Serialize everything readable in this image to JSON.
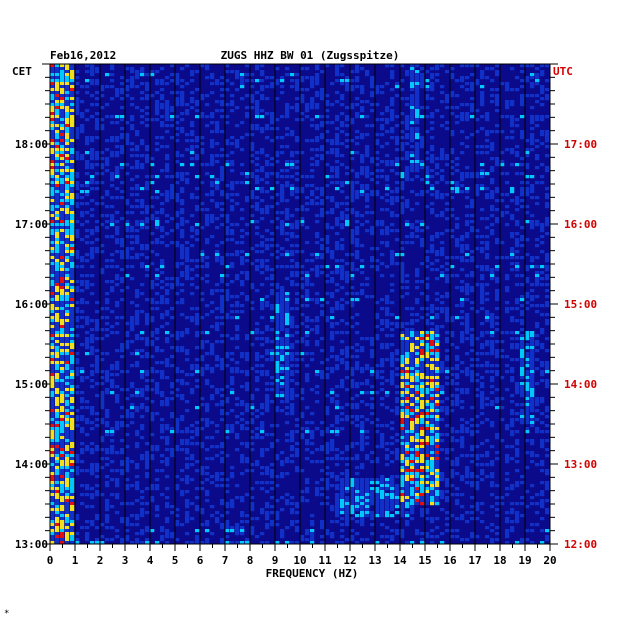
{
  "chart_data": {
    "type": "heatmap",
    "title": "ZUGS HHZ BW 01 (Zugsspitze)",
    "date": "Feb16,2012",
    "xlabel": "FREQUENCY (HZ)",
    "left_axis_label": "CET",
    "right_axis_label": "UTC",
    "x_ticks": [
      "0",
      "1",
      "2",
      "3",
      "4",
      "5",
      "6",
      "7",
      "8",
      "9",
      "10",
      "11",
      "12",
      "13",
      "14",
      "15",
      "16",
      "17",
      "18",
      "19",
      "20"
    ],
    "xlim": [
      0,
      20
    ],
    "cet_ticks": [
      "13:00",
      "14:00",
      "15:00",
      "16:00",
      "17:00",
      "18:00"
    ],
    "utc_ticks": [
      "12:00",
      "13:00",
      "14:00",
      "15:00",
      "16:00",
      "17:00"
    ],
    "time_range_cet": [
      "13:00",
      "19:00"
    ],
    "grid": true,
    "colors": {
      "background": "#0a0a8a",
      "low": "#1030c8",
      "mid": "#00c8ff",
      "high": "#f0e020",
      "peak": "#e01010",
      "utc_text": "#d40000"
    },
    "features": [
      {
        "freq_hz": [
          0.0,
          1.0
        ],
        "time_cet": [
          "13:00",
          "19:00"
        ],
        "level": "high"
      },
      {
        "freq_hz": [
          9.0,
          9.6
        ],
        "time_cet": [
          "14:50",
          "16:10"
        ],
        "level": "mid"
      },
      {
        "freq_hz": [
          14.0,
          15.6
        ],
        "time_cet": [
          "13:30",
          "15:40"
        ],
        "level": "high"
      },
      {
        "freq_hz": [
          14.4,
          14.8
        ],
        "time_cet": [
          "17:40",
          "19:00"
        ],
        "level": "mid"
      },
      {
        "freq_hz": [
          18.8,
          19.4
        ],
        "time_cet": [
          "14:30",
          "15:40"
        ],
        "level": "mid"
      },
      {
        "freq_hz": [
          11.5,
          14.5
        ],
        "time_cet": [
          "13:20",
          "13:50"
        ],
        "level": "mid"
      }
    ]
  },
  "footer_mark": "*"
}
